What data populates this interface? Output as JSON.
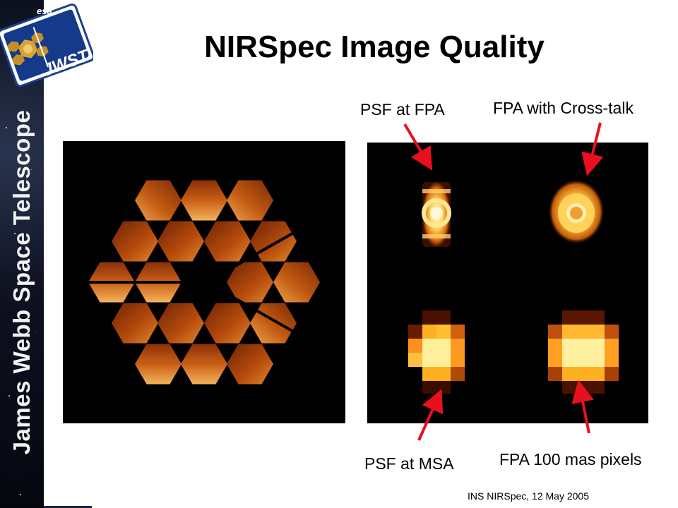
{
  "slide": {
    "title": "NIRSpec Image Quality",
    "footer": "INS NIRSpec, 12 May 2005"
  },
  "sidebar": {
    "vertical_title": "James Webb Space Telescope",
    "logo": {
      "agency": "esa",
      "mission": "JWST"
    }
  },
  "annotations": {
    "psf_at_fpa": "PSF at FPA",
    "fpa_with_crosstalk": "FPA with Cross-talk",
    "psf_at_msa": "PSF at MSA",
    "fpa_100_mas_pixels": "FPA 100 mas pixels"
  },
  "colors": {
    "arrow": "#e8101e",
    "panel_background": "#000000",
    "segment_dark": "#8a2e06",
    "segment_mid": "#c4560f",
    "segment_bright": "#f5b25a"
  }
}
